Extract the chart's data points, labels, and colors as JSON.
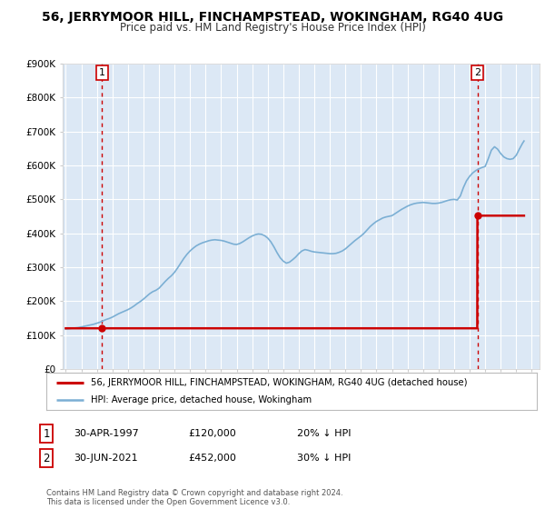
{
  "title": "56, JERRYMOOR HILL, FINCHAMPSTEAD, WOKINGHAM, RG40 4UG",
  "subtitle": "Price paid vs. HM Land Registry's House Price Index (HPI)",
  "ylim": [
    0,
    900000
  ],
  "yticks": [
    0,
    100000,
    200000,
    300000,
    400000,
    500000,
    600000,
    700000,
    800000,
    900000
  ],
  "ytick_labels": [
    "£0",
    "£100K",
    "£200K",
    "£300K",
    "£400K",
    "£500K",
    "£600K",
    "£700K",
    "£800K",
    "£900K"
  ],
  "xlim_start": 1994.8,
  "xlim_end": 2025.5,
  "sale1_date": 1997.33,
  "sale1_price": 120000,
  "sale1_label": "1",
  "sale1_date_str": "30-APR-1997",
  "sale1_price_str": "£120,000",
  "sale1_hpi_str": "20% ↓ HPI",
  "sale2_date": 2021.5,
  "sale2_price": 452000,
  "sale2_label": "2",
  "sale2_date_str": "30-JUN-2021",
  "sale2_price_str": "£452,000",
  "sale2_hpi_str": "30% ↓ HPI",
  "red_line_color": "#cc0000",
  "blue_line_color": "#7bafd4",
  "dashed_line_color": "#cc0000",
  "background_color": "#ffffff",
  "plot_bg_color": "#dce8f5",
  "grid_color": "#ffffff",
  "legend_label_red": "56, JERRYMOOR HILL, FINCHAMPSTEAD, WOKINGHAM, RG40 4UG (detached house)",
  "legend_label_blue": "HPI: Average price, detached house, Wokingham",
  "footer": "Contains HM Land Registry data © Crown copyright and database right 2024.\nThis data is licensed under the Open Government Licence v3.0.",
  "hpi_x": [
    1995.0,
    1995.2,
    1995.4,
    1995.6,
    1995.8,
    1996.0,
    1996.2,
    1996.4,
    1996.6,
    1996.8,
    1997.0,
    1997.2,
    1997.4,
    1997.6,
    1997.8,
    1998.0,
    1998.2,
    1998.4,
    1998.6,
    1998.8,
    1999.0,
    1999.2,
    1999.4,
    1999.6,
    1999.8,
    2000.0,
    2000.2,
    2000.4,
    2000.6,
    2000.8,
    2001.0,
    2001.2,
    2001.4,
    2001.6,
    2001.8,
    2002.0,
    2002.2,
    2002.4,
    2002.6,
    2002.8,
    2003.0,
    2003.2,
    2003.4,
    2003.6,
    2003.8,
    2004.0,
    2004.2,
    2004.4,
    2004.6,
    2004.8,
    2005.0,
    2005.2,
    2005.4,
    2005.6,
    2005.8,
    2006.0,
    2006.2,
    2006.4,
    2006.6,
    2006.8,
    2007.0,
    2007.2,
    2007.4,
    2007.6,
    2007.8,
    2008.0,
    2008.2,
    2008.4,
    2008.6,
    2008.8,
    2009.0,
    2009.2,
    2009.4,
    2009.6,
    2009.8,
    2010.0,
    2010.2,
    2010.4,
    2010.6,
    2010.8,
    2011.0,
    2011.2,
    2011.4,
    2011.6,
    2011.8,
    2012.0,
    2012.2,
    2012.4,
    2012.6,
    2012.8,
    2013.0,
    2013.2,
    2013.4,
    2013.6,
    2013.8,
    2014.0,
    2014.2,
    2014.4,
    2014.6,
    2014.8,
    2015.0,
    2015.2,
    2015.4,
    2015.6,
    2015.8,
    2016.0,
    2016.2,
    2016.4,
    2016.6,
    2016.8,
    2017.0,
    2017.2,
    2017.4,
    2017.6,
    2017.8,
    2018.0,
    2018.2,
    2018.4,
    2018.6,
    2018.8,
    2019.0,
    2019.2,
    2019.4,
    2019.6,
    2019.8,
    2020.0,
    2020.2,
    2020.4,
    2020.6,
    2020.8,
    2021.0,
    2021.2,
    2021.4,
    2021.6,
    2021.8,
    2022.0,
    2022.2,
    2022.4,
    2022.6,
    2022.8,
    2023.0,
    2023.2,
    2023.4,
    2023.6,
    2023.8,
    2024.0,
    2024.2,
    2024.4,
    2024.5
  ],
  "hpi_y": [
    118000,
    119000,
    120000,
    121000,
    122000,
    124000,
    126000,
    128000,
    130000,
    132000,
    135000,
    138000,
    142000,
    146000,
    149000,
    153000,
    158000,
    163000,
    167000,
    171000,
    175000,
    180000,
    186000,
    193000,
    199000,
    206000,
    214000,
    222000,
    228000,
    232000,
    238000,
    248000,
    258000,
    267000,
    275000,
    285000,
    298000,
    312000,
    326000,
    338000,
    348000,
    356000,
    363000,
    368000,
    372000,
    375000,
    378000,
    380000,
    381000,
    380000,
    379000,
    377000,
    374000,
    371000,
    368000,
    367000,
    370000,
    375000,
    381000,
    387000,
    392000,
    396000,
    398000,
    397000,
    393000,
    386000,
    375000,
    360000,
    343000,
    328000,
    318000,
    312000,
    315000,
    322000,
    330000,
    340000,
    348000,
    352000,
    350000,
    347000,
    345000,
    344000,
    343000,
    342000,
    341000,
    340000,
    340000,
    341000,
    344000,
    348000,
    354000,
    362000,
    370000,
    378000,
    385000,
    392000,
    400000,
    410000,
    420000,
    428000,
    435000,
    440000,
    445000,
    448000,
    450000,
    452000,
    458000,
    464000,
    470000,
    475000,
    480000,
    484000,
    487000,
    489000,
    490000,
    491000,
    490000,
    489000,
    488000,
    488000,
    489000,
    491000,
    494000,
    497000,
    499000,
    500000,
    498000,
    510000,
    535000,
    555000,
    568000,
    578000,
    585000,
    590000,
    594000,
    597000,
    620000,
    645000,
    655000,
    648000,
    635000,
    625000,
    620000,
    618000,
    620000,
    630000,
    648000,
    665000,
    672000
  ],
  "price_x": [
    1995.0,
    1997.32,
    1997.33,
    2021.49,
    2021.5,
    2024.5
  ],
  "price_y": [
    120000,
    120000,
    120000,
    120000,
    452000,
    452000
  ]
}
